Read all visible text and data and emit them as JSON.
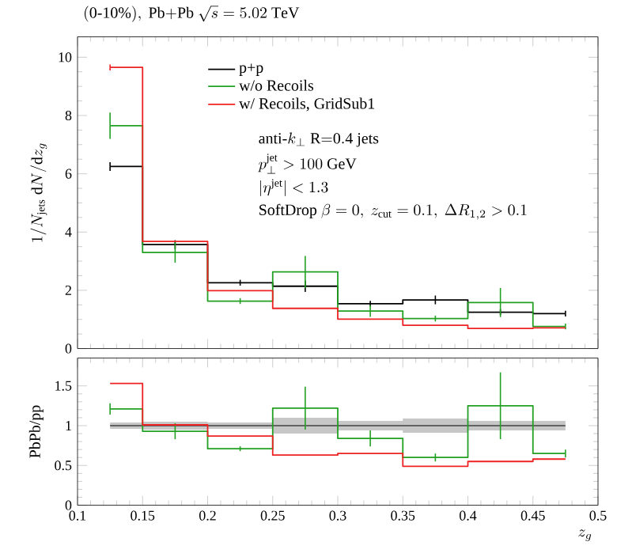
{
  "chart_data": [
    {
      "type": "step",
      "title": "\\mathrm{(0\\mbox{-}10\\%),\\ Pb{+}Pb}\\ \\sqrt{s} = 5.02\\ \\mathrm{TeV}",
      "ylabel": "1/N_{\\mathrm{jets}}\\ \\mathrm{d}N/\\mathrm{d}z_g",
      "x": [
        0.125,
        0.175,
        0.225,
        0.275,
        0.325,
        0.375,
        0.425,
        0.475
      ],
      "xlim": [
        0.1,
        0.5
      ],
      "xticks": [
        0.1,
        0.15,
        0.2,
        0.25,
        0.3,
        0.35,
        0.4,
        0.45,
        0.5
      ],
      "ylim": [
        0,
        10.7
      ],
      "yticks": [
        0,
        2,
        4,
        6,
        8,
        10
      ],
      "tick_labels": "y",
      "legend": "top",
      "annotations": [
        "\\mathrm{anti}\\mbox{-}k_\\perp\\ \\mathrm{R{=}0.4\\ jets}",
        "p_\\perp^{\\mathrm{jet}} > 100\\ \\mathrm{GeV}",
        "|\\eta^{\\mathrm{jet}}| < 1.3",
        "\\mathrm{SoftDrop}\\ \\beta = 0,\\ z_{\\mathrm{cut}} = 0.1,\\ \\Delta R_{1,2} > 0.1"
      ],
      "series": [
        {
          "name": "p+p",
          "color": "#000000",
          "values": [
            6.25,
            3.57,
            2.26,
            2.14,
            1.54,
            1.67,
            1.25,
            1.2
          ],
          "errors": [
            0.15,
            0.15,
            0.1,
            0.2,
            0.1,
            0.15,
            0.1,
            0.1
          ]
        },
        {
          "name": "w/o Recoils",
          "color": "#22a022",
          "values": [
            7.65,
            3.3,
            1.63,
            2.63,
            1.29,
            1.03,
            1.58,
            0.76
          ],
          "errors": [
            0.45,
            0.35,
            0.1,
            0.55,
            0.2,
            0.1,
            0.5,
            0.1
          ]
        },
        {
          "name": "w/ Recoils, GridSub1",
          "color": "#ee2222",
          "values": [
            9.65,
            3.68,
            1.99,
            1.38,
            1.01,
            0.8,
            0.69,
            0.71
          ],
          "errors": [
            0.1,
            null,
            null,
            null,
            null,
            null,
            null,
            null
          ]
        }
      ]
    },
    {
      "type": "step",
      "xlabel": "z_g",
      "ylabel": "PbPb/pp",
      "x": [
        0.125,
        0.175,
        0.225,
        0.275,
        0.325,
        0.375,
        0.425,
        0.475
      ],
      "xlim": [
        0.1,
        0.5
      ],
      "xticks": [
        0.1,
        0.15,
        0.2,
        0.25,
        0.3,
        0.35,
        0.4,
        0.45,
        0.5
      ],
      "ylim": [
        0,
        1.85
      ],
      "yticks": [
        0,
        0.5,
        1,
        1.5
      ],
      "series": [
        {
          "color": "#000000",
          "values": [
            1,
            1,
            1,
            1,
            1,
            1,
            1,
            1
          ],
          "lower": [
            0.96,
            0.95,
            0.96,
            0.9,
            0.94,
            0.91,
            0.94,
            0.94
          ],
          "upper": [
            1.04,
            1.05,
            1.04,
            1.1,
            1.06,
            1.09,
            1.06,
            1.06
          ]
        },
        {
          "color": "#22a022",
          "values": [
            1.21,
            0.93,
            0.71,
            1.22,
            0.84,
            0.6,
            1.25,
            0.65
          ],
          "errors": [
            0.07,
            0.1,
            0.03,
            0.27,
            0.1,
            0.05,
            0.42,
            0.05
          ]
        },
        {
          "color": "#ee2222",
          "values": [
            1.53,
            1.01,
            0.87,
            0.63,
            0.65,
            0.49,
            0.55,
            0.58
          ]
        }
      ]
    }
  ]
}
